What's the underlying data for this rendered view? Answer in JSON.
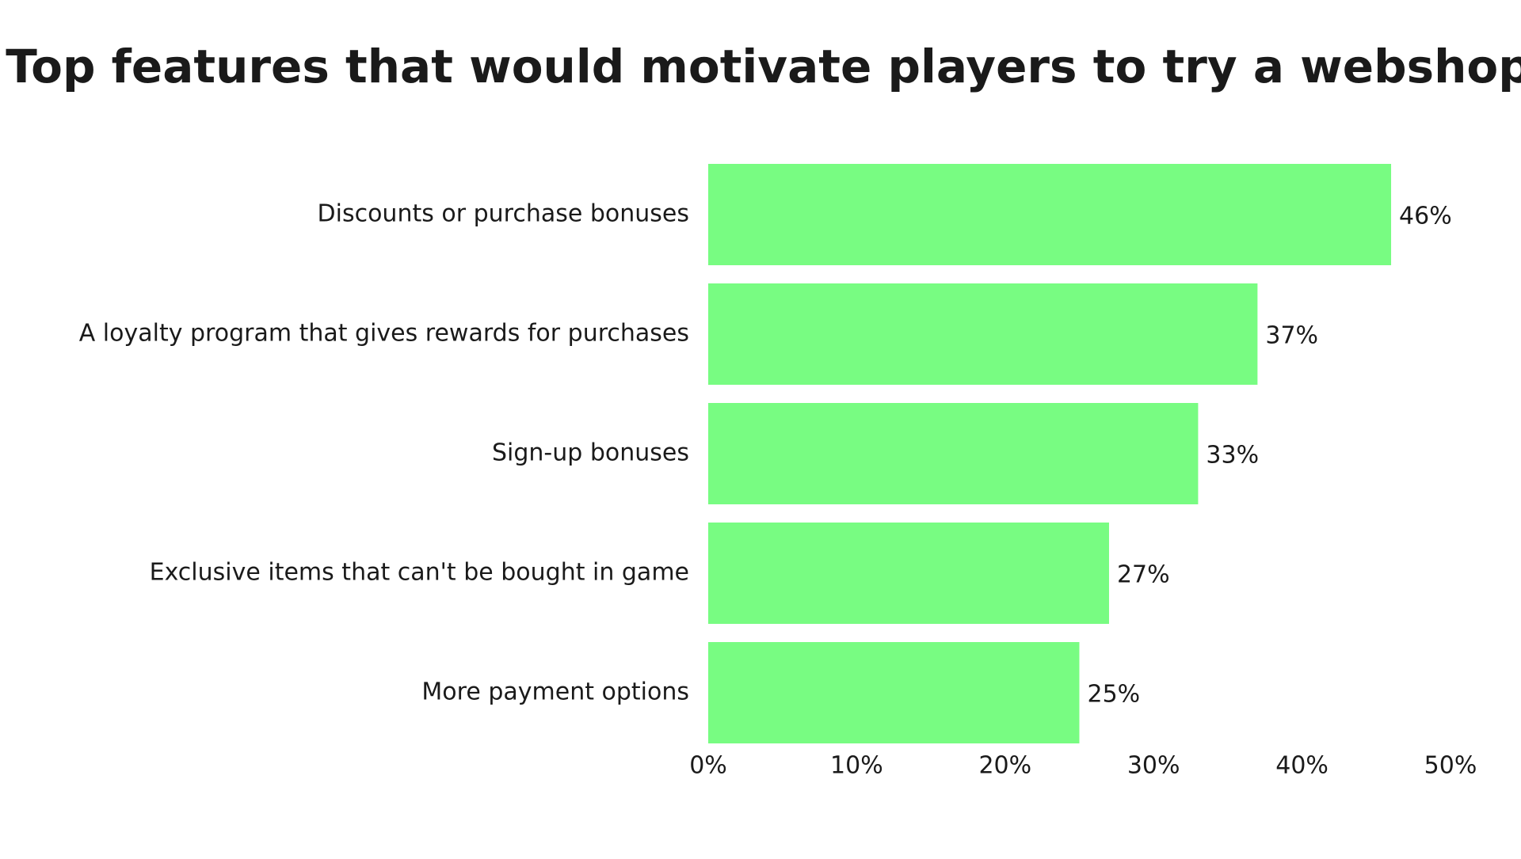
{
  "chart_data": {
    "type": "bar",
    "orientation": "horizontal",
    "title": "Top features that would motivate players to try a webshop",
    "categories": [
      "Discounts or purchase bonuses",
      "A loyalty program that gives rewards for purchases",
      "Sign-up bonuses",
      "Exclusive items that can't be bought in game",
      "More payment options"
    ],
    "values": [
      46,
      37,
      33,
      27,
      25
    ],
    "value_labels": [
      "46%",
      "37%",
      "33%",
      "27%",
      "25%"
    ],
    "xlim": [
      0,
      50
    ],
    "x_ticks": [
      0,
      10,
      20,
      30,
      40,
      50
    ],
    "x_tick_labels": [
      "0%",
      "10%",
      "20%",
      "30%",
      "40%",
      "50%"
    ],
    "xlabel": "",
    "ylabel": "",
    "grid": false,
    "legend": "none",
    "colors": {
      "bar": "#78fc82",
      "text": "#1a1a1a",
      "background": "#ffffff"
    }
  }
}
